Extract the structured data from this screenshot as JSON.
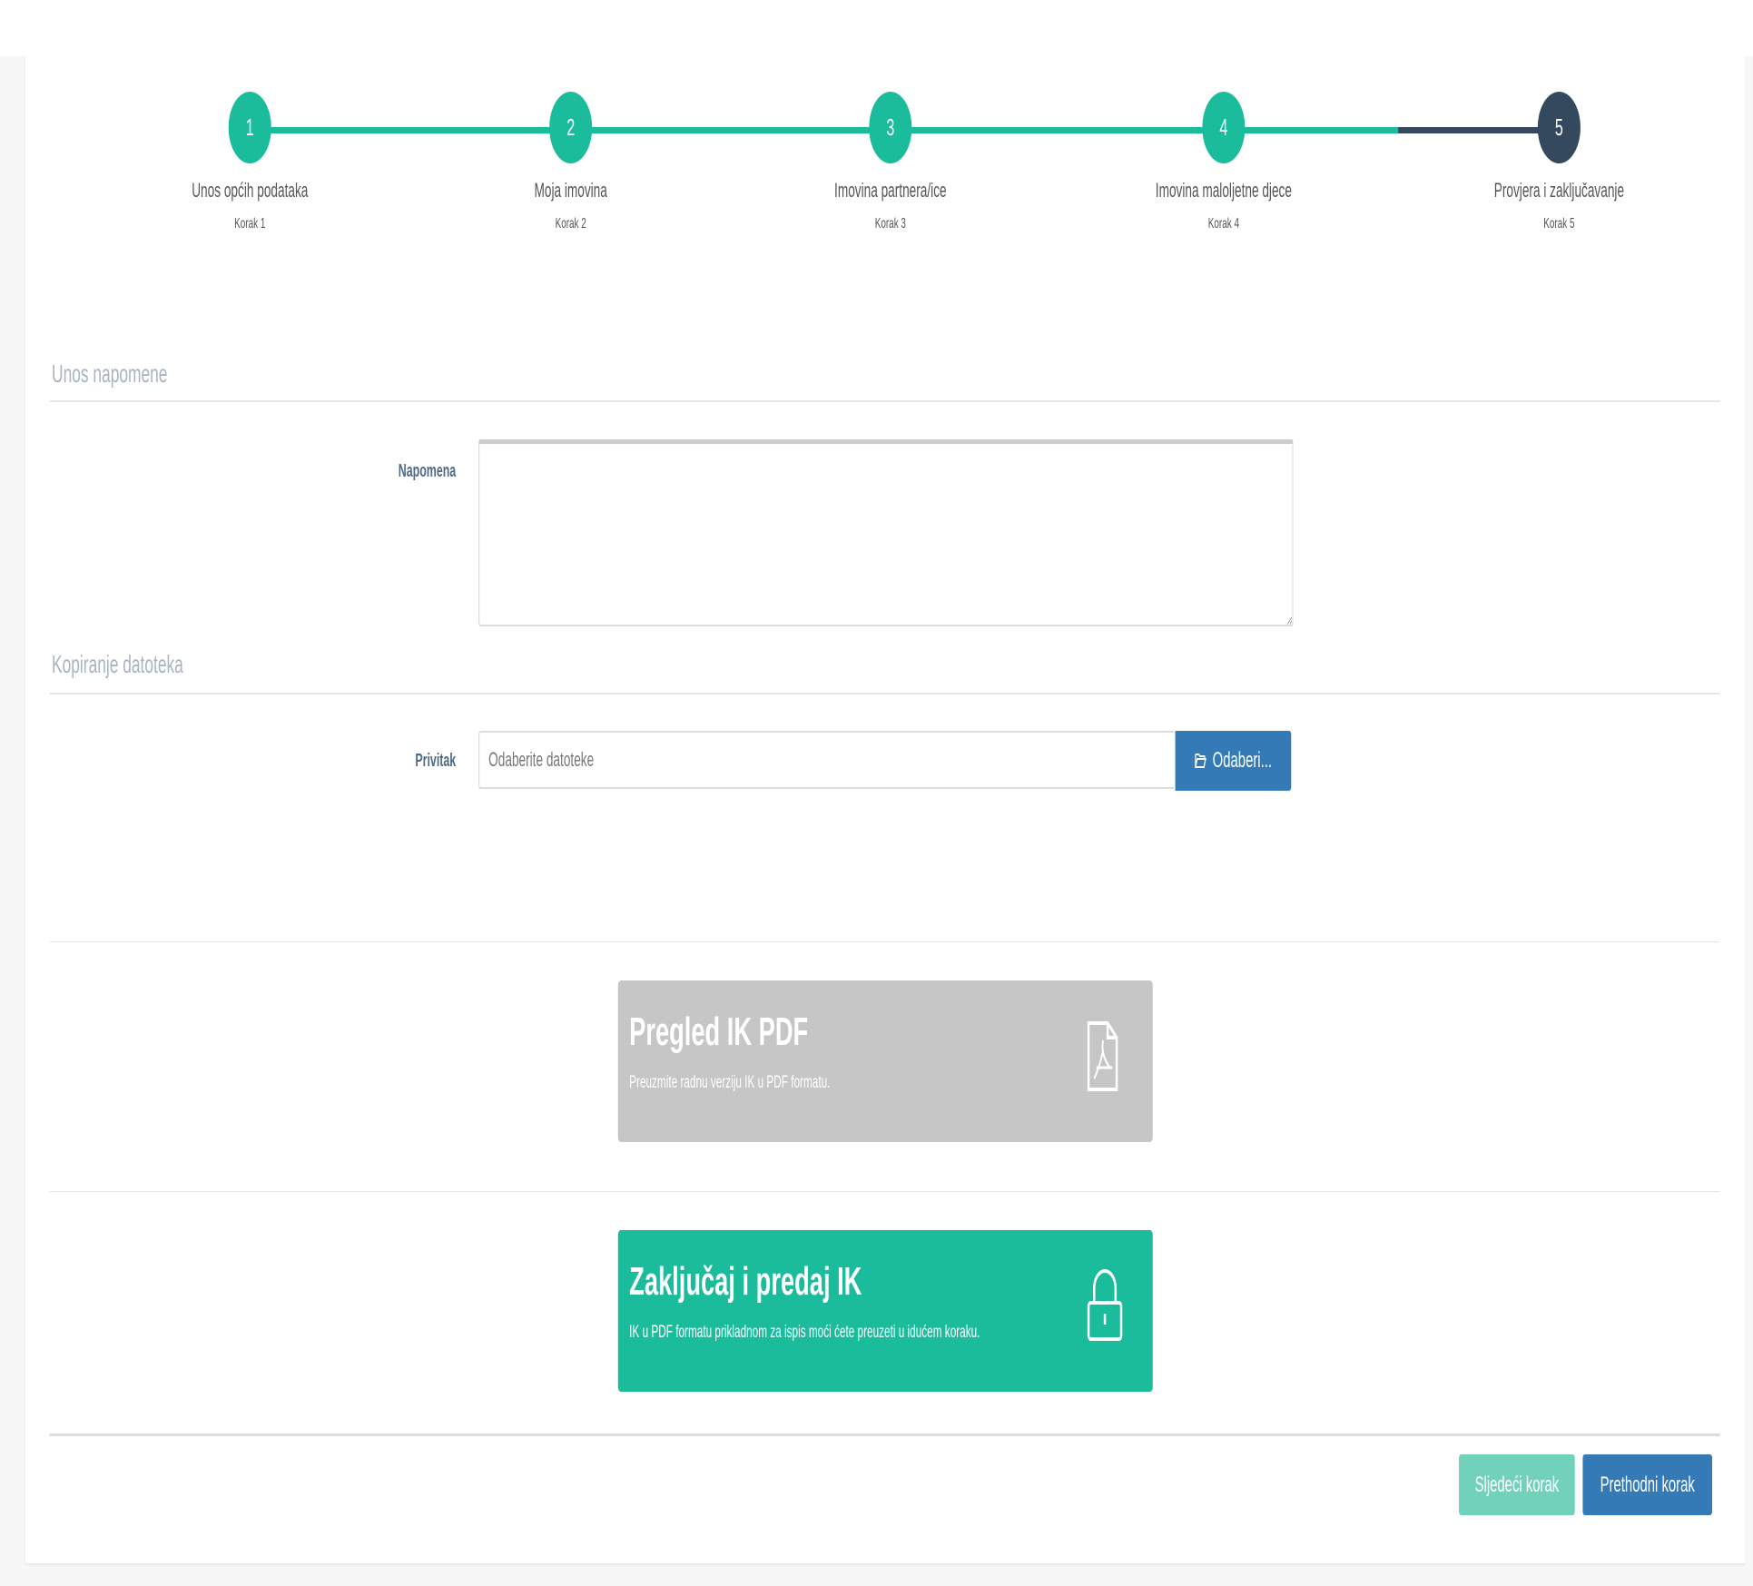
{
  "stepper": {
    "steps": [
      {
        "number": "1",
        "label": "Unos općih podataka",
        "sub": "Korak 1",
        "state": "done"
      },
      {
        "number": "2",
        "label": "Moja imovina",
        "sub": "Korak 2",
        "state": "done"
      },
      {
        "number": "3",
        "label": "Imovina partnera/ice",
        "sub": "Korak 3",
        "state": "done"
      },
      {
        "number": "4",
        "label": "Imovina maloljetne djece",
        "sub": "Korak 4",
        "state": "done"
      },
      {
        "number": "5",
        "label": "Provjera i zaključavanje",
        "sub": "Korak 5",
        "state": "active"
      }
    ],
    "done_color": "#1abc9c",
    "active_color": "#34495e"
  },
  "notes": {
    "section_title": "Unos napomene",
    "label": "Napomena",
    "value": ""
  },
  "files": {
    "section_title": "Kopiranje datoteka",
    "label": "Privitak",
    "placeholder": "Odaberite datoteke",
    "browse_label": "Odaberi..."
  },
  "pdf_card": {
    "title": "Pregled IK PDF",
    "subtitle": "Preuzmite radnu verziju IK u PDF formatu.",
    "icon": "file-pdf-icon"
  },
  "lock_card": {
    "title": "Zaključaj i predaj IK",
    "subtitle": "IK u PDF formatu prikladnom za ispis moći ćete preuzeti u idućem koraku.",
    "icon": "lock-icon"
  },
  "footer": {
    "next_label": "Sljedeći korak",
    "prev_label": "Prethodni korak"
  }
}
